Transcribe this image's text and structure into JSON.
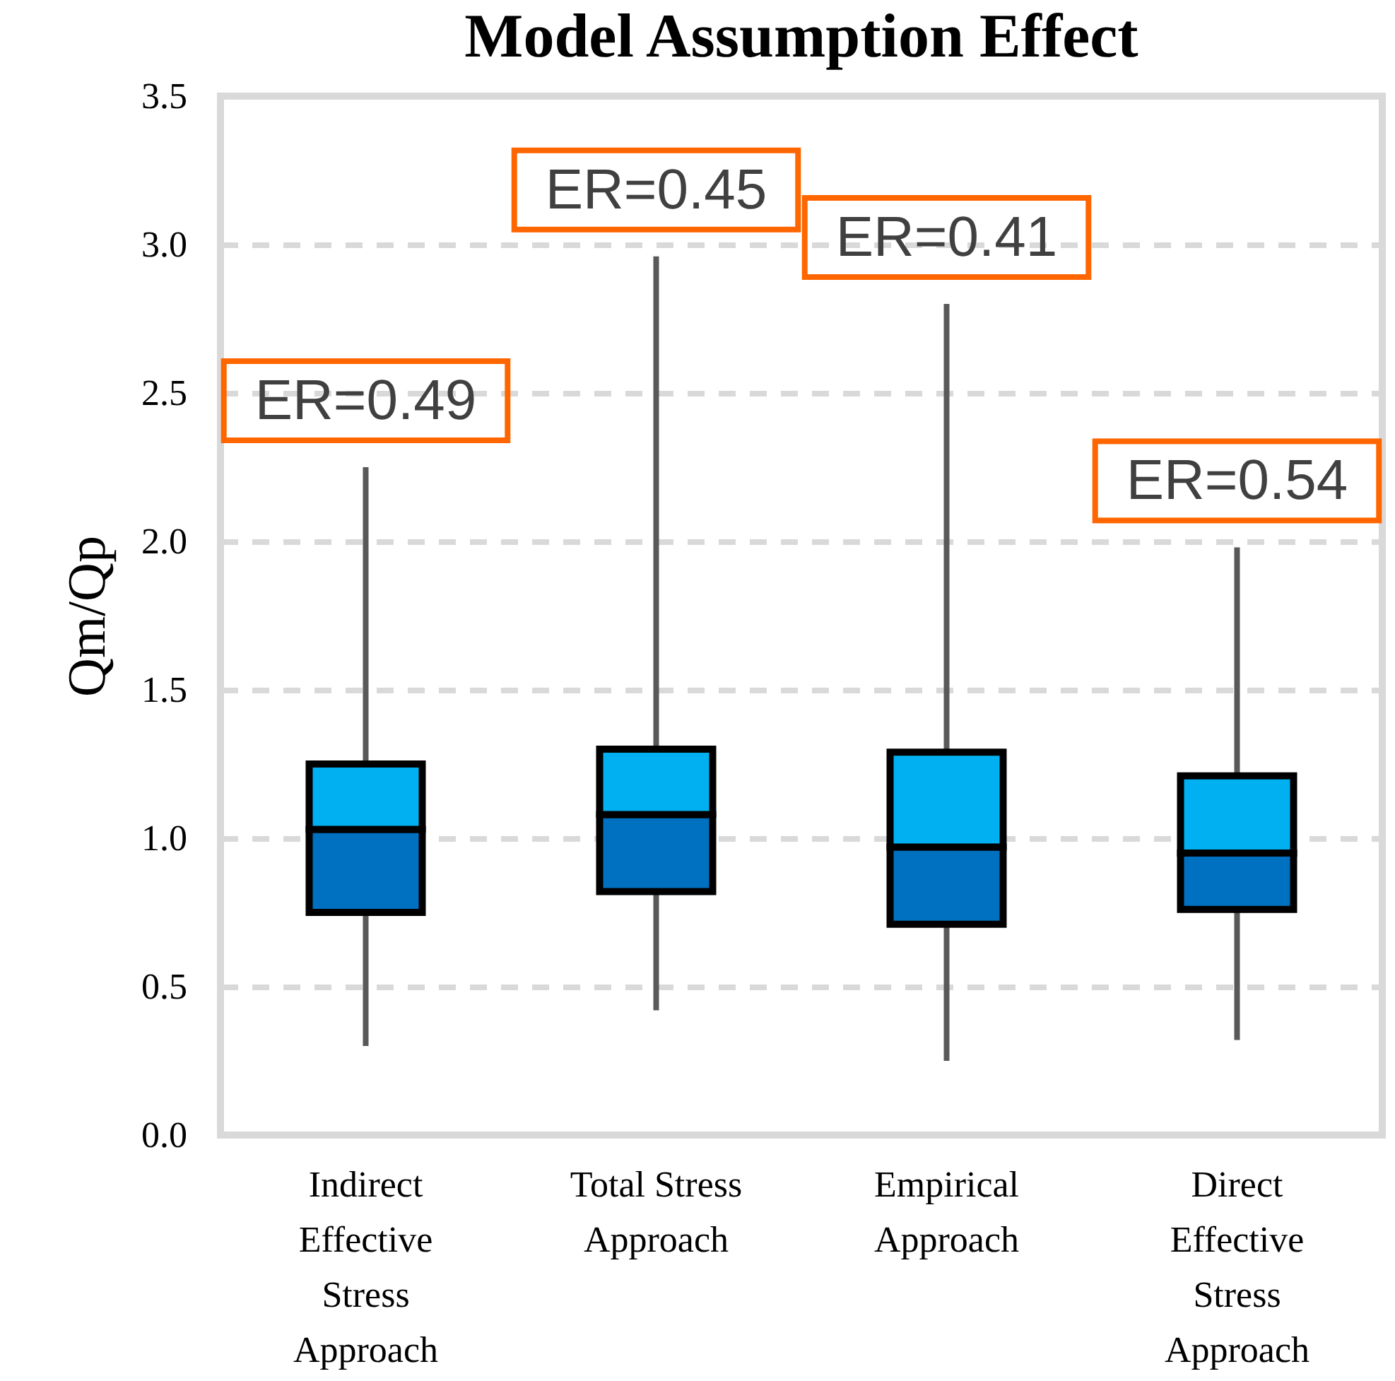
{
  "chart_data": {
    "type": "box",
    "title": "Model Assumption  Effect",
    "ylabel": "Qm/Qp",
    "categories": [
      "Indirect Effective Stress Approach",
      "Total Stress Approach",
      "Empirical Approach",
      "Direct Effective Stress Approach"
    ],
    "series": [
      {
        "color": "#0070c0",
        "boxes": [
          {
            "low": 0.3,
            "q1": 0.75,
            "median": 1.03,
            "q3": 1.25,
            "high": 2.25
          },
          {
            "low": 0.42,
            "q1": 0.82,
            "median": 1.08,
            "q3": 1.3,
            "high": 2.96
          },
          {
            "low": 0.25,
            "q1": 0.71,
            "median": 0.97,
            "q3": 1.29,
            "high": 2.8
          },
          {
            "low": 0.32,
            "q1": 0.76,
            "median": 0.95,
            "q3": 1.21,
            "high": 1.98
          }
        ]
      }
    ],
    "ylim": [
      0,
      3.5
    ],
    "yticks": [
      {
        "value": 0,
        "label": "0.0"
      },
      0.5,
      {
        "value": 1,
        "label": "1.0"
      },
      1.5,
      {
        "value": 2,
        "label": "2.0"
      },
      2.5,
      {
        "value": 3,
        "label": "3.0"
      },
      3.5
    ],
    "grid": "y",
    "annotations": [
      "ER=0.49",
      "ER=0.45",
      "ER=0.41",
      "ER=0.54"
    ]
  }
}
